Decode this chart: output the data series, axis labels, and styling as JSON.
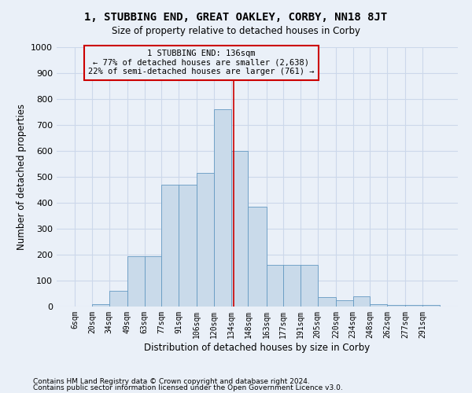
{
  "title": "1, STUBBING END, GREAT OAKLEY, CORBY, NN18 8JT",
  "subtitle": "Size of property relative to detached houses in Corby",
  "xlabel": "Distribution of detached houses by size in Corby",
  "ylabel": "Number of detached properties",
  "footnote1": "Contains HM Land Registry data © Crown copyright and database right 2024.",
  "footnote2": "Contains public sector information licensed under the Open Government Licence v3.0.",
  "annotation_line1": "1 STUBBING END: 136sqm",
  "annotation_line2": "← 77% of detached houses are smaller (2,638)",
  "annotation_line3": "22% of semi-detached houses are larger (761) →",
  "bins": [
    6,
    20,
    34,
    49,
    63,
    77,
    91,
    106,
    120,
    134,
    148,
    163,
    177,
    191,
    205,
    220,
    234,
    248,
    262,
    277,
    291,
    305
  ],
  "values": [
    0,
    10,
    60,
    195,
    195,
    470,
    470,
    515,
    760,
    600,
    385,
    160,
    160,
    160,
    35,
    25,
    40,
    10,
    5,
    5,
    5
  ],
  "bar_color": "#c9daea",
  "bar_edge_color": "#6499c2",
  "vline_color": "#cc0000",
  "vline_x": 136,
  "box_edge_color": "#cc0000",
  "grid_color": "#ccd8ea",
  "background_color": "#eaf0f8",
  "tick_labels": [
    "6sqm",
    "20sqm",
    "34sqm",
    "49sqm",
    "63sqm",
    "77sqm",
    "91sqm",
    "106sqm",
    "120sqm",
    "134sqm",
    "148sqm",
    "163sqm",
    "177sqm",
    "191sqm",
    "205sqm",
    "220sqm",
    "234sqm",
    "248sqm",
    "262sqm",
    "277sqm",
    "291sqm"
  ],
  "ylim": [
    0,
    1000
  ],
  "yticks": [
    0,
    100,
    200,
    300,
    400,
    500,
    600,
    700,
    800,
    900,
    1000
  ]
}
